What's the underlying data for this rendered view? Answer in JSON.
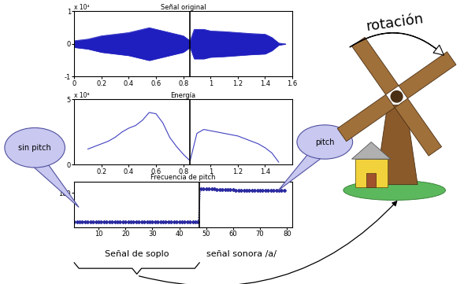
{
  "chart_data": [
    {
      "type": "area",
      "title": "Señal original",
      "y_multiplier": "x 10⁴",
      "x": [
        0,
        0.1,
        0.2,
        0.3,
        0.4,
        0.5,
        0.55,
        0.6,
        0.7,
        0.8,
        0.85,
        0.88,
        0.95,
        1.0,
        1.1,
        1.2,
        1.3,
        1.4,
        1.45,
        1.5,
        1.55
      ],
      "values": [
        0.1,
        0.15,
        0.25,
        0.3,
        0.35,
        0.45,
        0.5,
        0.45,
        0.35,
        0.25,
        0.1,
        0.45,
        0.45,
        0.4,
        0.38,
        0.35,
        0.32,
        0.3,
        0.2,
        0.03,
        0.0
      ],
      "color": "#1f1fbf",
      "xlim": [
        0,
        1.6
      ],
      "xticks": [
        0,
        0.2,
        0.4,
        0.6,
        0.8,
        1,
        1.2,
        1.4,
        1.6
      ],
      "ylim": [
        -1,
        1
      ],
      "yticks": [
        -1,
        0,
        1
      ]
    },
    {
      "type": "line",
      "title": "Energía",
      "y_multiplier": "x 10⁸",
      "x": [
        0.1,
        0.15,
        0.2,
        0.25,
        0.3,
        0.35,
        0.4,
        0.45,
        0.5,
        0.55,
        0.6,
        0.65,
        0.7,
        0.75,
        0.8,
        0.85,
        0.9,
        0.95,
        1.0,
        1.05,
        1.1,
        1.15,
        1.2,
        1.25,
        1.3,
        1.35,
        1.4,
        1.45,
        1.5
      ],
      "values": [
        1.2,
        1.4,
        1.6,
        1.8,
        2.1,
        2.5,
        2.8,
        3.0,
        3.4,
        4.0,
        3.9,
        3.2,
        2.1,
        1.4,
        0.8,
        0.3,
        2.4,
        2.7,
        2.6,
        2.5,
        2.4,
        2.3,
        2.2,
        2.0,
        1.8,
        1.6,
        1.3,
        0.9,
        0.2
      ],
      "color": "#4040c0",
      "xlim": [
        0,
        1.6
      ],
      "xticks": [
        0.2,
        0.4,
        0.6,
        0.8,
        1,
        1.2,
        1.4
      ],
      "ylim": [
        0,
        5
      ],
      "yticks": [
        0,
        5
      ]
    },
    {
      "type": "line",
      "title": "Frecuencia de pitch",
      "x": [
        1,
        2,
        3,
        4,
        5,
        6,
        7,
        8,
        9,
        10,
        11,
        12,
        13,
        14,
        15,
        16,
        17,
        18,
        19,
        20,
        21,
        22,
        23,
        24,
        25,
        26,
        27,
        28,
        29,
        30,
        31,
        32,
        33,
        34,
        35,
        36,
        37,
        38,
        39,
        40,
        41,
        42,
        43,
        44,
        45,
        46,
        47,
        48,
        49,
        50,
        51,
        52,
        53,
        54,
        55,
        56,
        57,
        58,
        59,
        60,
        61,
        62,
        63,
        64,
        65,
        66,
        67,
        68,
        69,
        70,
        71,
        72,
        73,
        74,
        75,
        76,
        77,
        78,
        79
      ],
      "values": [
        0,
        0,
        0,
        0,
        0,
        0,
        0,
        0,
        0,
        0,
        0,
        0,
        0,
        0,
        0,
        0,
        0,
        0,
        0,
        0,
        0,
        0,
        0,
        0,
        0,
        0,
        0,
        0,
        0,
        0,
        0,
        0,
        0,
        0,
        0,
        0,
        0,
        0,
        0,
        0,
        0,
        0,
        0,
        0,
        0,
        0,
        0,
        116,
        115,
        115,
        114,
        114,
        114,
        113,
        113,
        113,
        112,
        112,
        112,
        112,
        111,
        111,
        111,
        111,
        110,
        110,
        110,
        110,
        110,
        110,
        109,
        109,
        109,
        109,
        109,
        109,
        109,
        109,
        109
      ],
      "color": "#2a2aa0",
      "marker": "D",
      "line_style": "dotted",
      "xlim": [
        1,
        82
      ],
      "xticks": [
        10,
        20,
        30,
        40,
        50,
        60,
        70,
        80
      ],
      "ylim": [
        -20,
        140
      ],
      "yticks": [
        100
      ]
    }
  ],
  "diagram": {
    "callouts": [
      "sin pitch",
      "pitch"
    ],
    "segments": [
      "Señal de soplo",
      "señal sonora /a/"
    ],
    "arrow_label": "rotación",
    "boundary": {
      "time": 0.85,
      "frame": 47.5
    }
  }
}
